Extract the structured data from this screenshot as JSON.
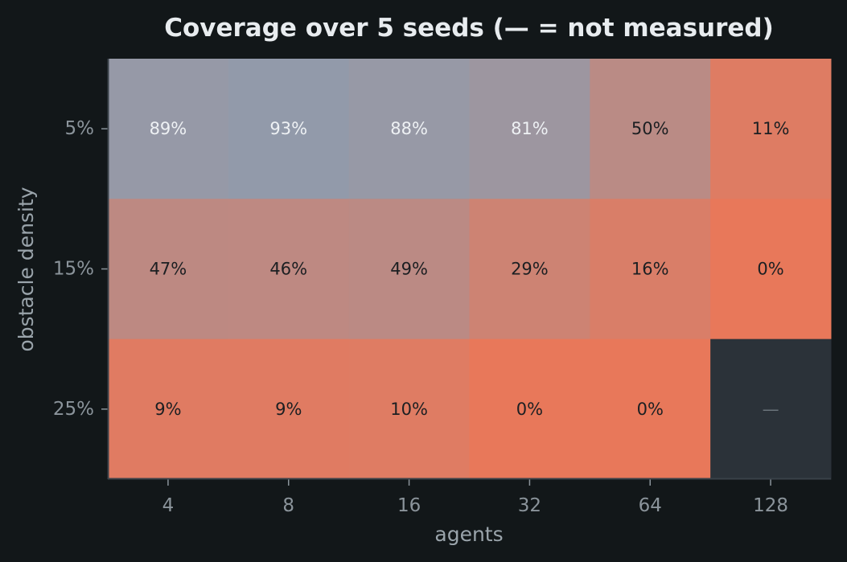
{
  "chart_data": {
    "type": "heatmap",
    "title": "Coverage over 5 seeds (— = not measured)",
    "xlabel": "agents",
    "ylabel": "obstacle density",
    "x_categories": [
      "4",
      "8",
      "16",
      "32",
      "64",
      "128"
    ],
    "y_categories": [
      "5%",
      "15%",
      "25%"
    ],
    "values": [
      [
        89,
        93,
        88,
        81,
        50,
        11
      ],
      [
        47,
        46,
        49,
        29,
        16,
        0
      ],
      [
        9,
        9,
        10,
        0,
        0,
        null
      ]
    ],
    "cell_labels": [
      [
        "89%",
        "93%",
        "88%",
        "81%",
        "50%",
        "11%"
      ],
      [
        "47%",
        "46%",
        "49%",
        "29%",
        "16%",
        "0%"
      ],
      [
        "9%",
        "9%",
        "10%",
        "0%",
        "0%",
        "—"
      ]
    ],
    "value_range": [
      0,
      100
    ],
    "colors": {
      "low": "#e8785a",
      "high": "#8c9db0",
      "missing": "#2b3239",
      "background": "#121719",
      "text_light": "#eef1f4",
      "text_dark": "#1c1f22",
      "missing_text": "#6b747b"
    },
    "grid": false,
    "legend": "none"
  }
}
